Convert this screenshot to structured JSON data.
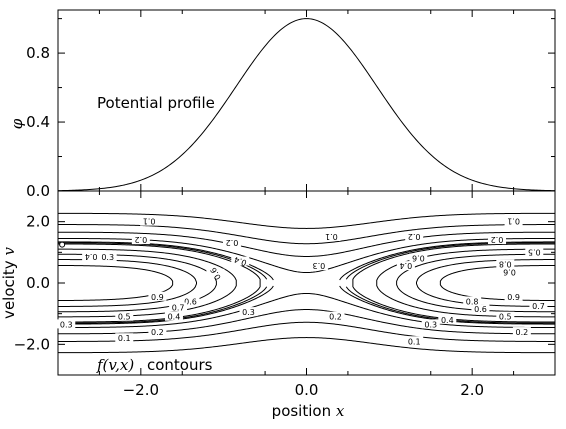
{
  "chart_data": [
    {
      "type": "line",
      "panel": "top",
      "ylabel": "φ",
      "annotation": "Potential profile",
      "xlim": [
        -3.0,
        3.0
      ],
      "ylim": [
        0.0,
        1.05
      ],
      "yticks": [
        "0.0",
        "0.4",
        "0.8"
      ],
      "ytick_values": [
        0.0,
        0.4,
        0.8
      ],
      "series": [
        {
          "x": [
            -3.0,
            -2.5,
            -2.0,
            -1.75,
            -1.5,
            -1.25,
            -1.0,
            -0.75,
            -0.5,
            -0.25,
            0.0,
            0.25,
            0.5,
            0.75,
            1.0,
            1.25,
            1.5,
            1.75,
            2.0,
            2.5,
            3.0
          ],
          "y": [
            0.0,
            0.0,
            0.03,
            0.08,
            0.17,
            0.32,
            0.5,
            0.68,
            0.84,
            0.96,
            1.0,
            0.96,
            0.84,
            0.68,
            0.5,
            0.32,
            0.17,
            0.08,
            0.03,
            0.0,
            0.0
          ]
        }
      ]
    },
    {
      "type": "contour",
      "panel": "bottom",
      "xlabel_prefix": "position ",
      "xlabel_var": "x",
      "ylabel_prefix": "velocity ",
      "ylabel_var": "v",
      "annotation_fn": "f(v,x)",
      "annotation_text": "contours",
      "xlim": [
        -3.0,
        3.0
      ],
      "ylim": [
        -3.0,
        3.0
      ],
      "xticks": [
        "−2.0",
        "0.0",
        "2.0"
      ],
      "xtick_values": [
        -2.0,
        0.0,
        2.0
      ],
      "yticks": [
        "2.0",
        "0.0",
        "−2.0"
      ],
      "ytick_values": [
        2.0,
        0.0,
        -2.0
      ],
      "levels": [
        0.1,
        0.2,
        0.3,
        0.4,
        0.5,
        0.6,
        0.7,
        0.8,
        0.9
      ],
      "contour_labels": [
        "0.1",
        "0.2",
        "0.3",
        "0.4",
        "0.5",
        "0.6",
        "0.7",
        "0.8",
        "0.9"
      ]
    }
  ]
}
